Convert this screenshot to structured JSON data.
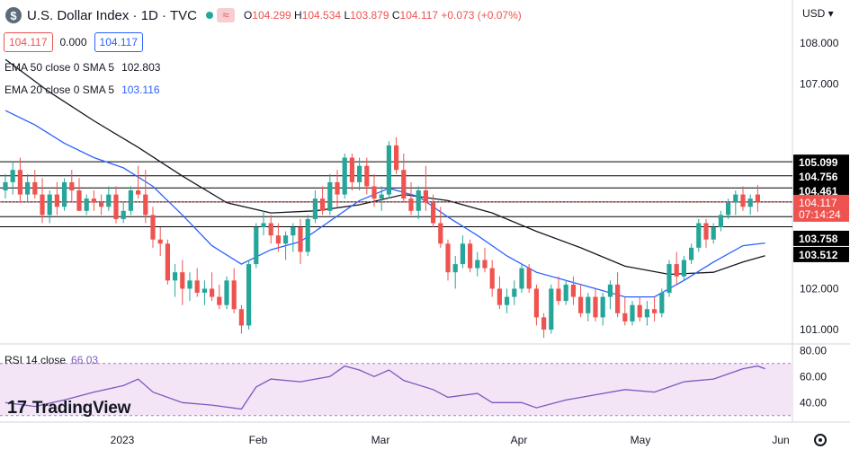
{
  "header": {
    "logo_letter": "$",
    "title": "U.S. Dollar Index · 1D · TVC",
    "wave_icon": "≈",
    "ohlc": {
      "o_label": "O",
      "o": "104.299",
      "h_label": "H",
      "h": "104.534",
      "l_label": "L",
      "l": "103.879",
      "c_label": "C",
      "c": "104.117",
      "chg": "+0.073 (+0.07%)"
    },
    "boxes": [
      "104.117",
      "0.000",
      "104.117"
    ],
    "currency": "USD"
  },
  "indicators": {
    "ema50": {
      "label": "EMA 50 close 0 SMA 5",
      "value": "102.803"
    },
    "ema20": {
      "label": "EMA 20 close 0 SMA 5",
      "value": "103.116"
    },
    "rsi": {
      "label": "RSI 14 close",
      "value": "66.03"
    }
  },
  "branding": {
    "name": "TradingView"
  },
  "colors": {
    "up": "#26a69a",
    "down": "#ef5350",
    "ema20": "#2962ff",
    "ema50": "#131722",
    "rsi": "#7e57c2",
    "rsi_fill": "#f3e5f5"
  },
  "chart_data": {
    "type": "candlestick",
    "ylim": [
      100.65,
      109.05
    ],
    "y_ticks": [
      101.0,
      102.0,
      107.0,
      108.0
    ],
    "x_labels": [
      "2023",
      "Feb",
      "Mar",
      "Apr",
      "May",
      "Jun"
    ],
    "horizontal_levels": [
      105.099,
      104.756,
      104.461,
      104.118,
      103.758,
      103.512
    ],
    "last_price": {
      "value": "104.117",
      "countdown": "07:14:24"
    },
    "candles": [
      [
        104.4,
        104.8,
        104.2,
        104.6
      ],
      [
        104.6,
        105.1,
        104.3,
        104.9
      ],
      [
        104.9,
        105.2,
        104.1,
        104.3
      ],
      [
        104.3,
        104.8,
        104.1,
        104.6
      ],
      [
        104.6,
        104.9,
        104.2,
        104.3
      ],
      [
        104.3,
        104.7,
        103.6,
        103.8
      ],
      [
        103.8,
        104.4,
        103.6,
        104.3
      ],
      [
        104.3,
        104.6,
        103.8,
        104.0
      ],
      [
        104.0,
        104.7,
        103.9,
        104.6
      ],
      [
        104.6,
        104.9,
        104.1,
        104.4
      ],
      [
        104.4,
        104.7,
        103.9,
        103.9
      ],
      [
        103.9,
        104.3,
        103.8,
        104.2
      ],
      [
        104.2,
        104.4,
        103.9,
        104.1
      ],
      [
        104.1,
        104.3,
        103.8,
        104.0
      ],
      [
        104.0,
        104.5,
        103.9,
        104.3
      ],
      [
        104.3,
        104.5,
        103.6,
        103.7
      ],
      [
        103.7,
        104.1,
        103.6,
        103.9
      ],
      [
        103.9,
        104.5,
        103.8,
        104.4
      ],
      [
        104.4,
        105.0,
        104.2,
        104.3
      ],
      [
        104.3,
        104.9,
        103.6,
        103.8
      ],
      [
        103.8,
        104.0,
        103.0,
        103.2
      ],
      [
        103.2,
        103.5,
        102.8,
        103.1
      ],
      [
        103.1,
        103.2,
        102.1,
        102.2
      ],
      [
        102.2,
        102.6,
        101.8,
        102.4
      ],
      [
        102.4,
        102.7,
        101.6,
        102.0
      ],
      [
        102.0,
        102.4,
        101.7,
        102.2
      ],
      [
        102.2,
        102.5,
        101.8,
        101.9
      ],
      [
        101.9,
        102.2,
        101.6,
        102.0
      ],
      [
        102.0,
        102.4,
        101.7,
        101.8
      ],
      [
        101.8,
        102.1,
        101.5,
        101.6
      ],
      [
        101.6,
        102.3,
        101.5,
        102.2
      ],
      [
        102.2,
        102.5,
        101.4,
        101.5
      ],
      [
        101.5,
        101.6,
        100.9,
        101.1
      ],
      [
        101.1,
        102.7,
        101.0,
        102.6
      ],
      [
        102.6,
        103.6,
        102.5,
        103.5
      ],
      [
        103.5,
        103.9,
        103.3,
        103.6
      ],
      [
        103.6,
        103.8,
        103.1,
        103.3
      ],
      [
        103.3,
        103.6,
        102.9,
        103.1
      ],
      [
        103.1,
        103.4,
        102.7,
        103.3
      ],
      [
        103.3,
        103.6,
        102.9,
        103.5
      ],
      [
        103.5,
        103.7,
        102.6,
        102.9
      ],
      [
        102.9,
        103.8,
        102.8,
        103.7
      ],
      [
        103.7,
        104.4,
        103.6,
        104.2
      ],
      [
        104.2,
        104.5,
        103.8,
        103.9
      ],
      [
        103.9,
        104.8,
        103.8,
        104.6
      ],
      [
        104.6,
        104.9,
        104.0,
        104.3
      ],
      [
        104.3,
        105.3,
        104.2,
        105.2
      ],
      [
        105.2,
        105.3,
        104.4,
        104.6
      ],
      [
        104.6,
        105.2,
        104.4,
        105.0
      ],
      [
        105.0,
        105.2,
        104.3,
        104.5
      ],
      [
        104.5,
        104.8,
        104.0,
        104.2
      ],
      [
        104.2,
        104.5,
        103.9,
        104.3
      ],
      [
        104.3,
        105.6,
        104.2,
        105.5
      ],
      [
        105.5,
        105.7,
        104.8,
        104.9
      ],
      [
        104.9,
        105.3,
        104.1,
        104.2
      ],
      [
        104.2,
        104.6,
        103.8,
        103.9
      ],
      [
        103.9,
        104.5,
        103.7,
        104.4
      ],
      [
        104.4,
        105.0,
        103.9,
        104.1
      ],
      [
        104.1,
        104.3,
        103.5,
        103.6
      ],
      [
        103.6,
        104.0,
        103.0,
        103.1
      ],
      [
        103.1,
        103.2,
        102.2,
        102.4
      ],
      [
        102.4,
        102.8,
        102.0,
        102.6
      ],
      [
        102.6,
        103.3,
        102.5,
        103.1
      ],
      [
        103.1,
        103.2,
        102.4,
        102.5
      ],
      [
        102.5,
        102.9,
        102.3,
        102.7
      ],
      [
        102.7,
        103.0,
        102.4,
        102.5
      ],
      [
        102.5,
        102.7,
        101.8,
        102.0
      ],
      [
        102.0,
        102.3,
        101.5,
        101.6
      ],
      [
        101.6,
        102.0,
        101.4,
        101.8
      ],
      [
        101.8,
        102.2,
        101.6,
        102.0
      ],
      [
        102.0,
        102.6,
        101.9,
        102.5
      ],
      [
        102.5,
        102.6,
        101.9,
        102.0
      ],
      [
        102.0,
        102.1,
        101.1,
        101.3
      ],
      [
        101.3,
        101.4,
        100.8,
        101.0
      ],
      [
        101.0,
        102.1,
        100.9,
        102.0
      ],
      [
        102.0,
        102.3,
        101.6,
        101.7
      ],
      [
        101.7,
        102.2,
        101.6,
        102.1
      ],
      [
        102.1,
        102.3,
        101.6,
        101.8
      ],
      [
        101.8,
        102.1,
        101.3,
        101.4
      ],
      [
        101.4,
        101.9,
        101.2,
        101.8
      ],
      [
        101.8,
        102.0,
        101.2,
        101.3
      ],
      [
        101.3,
        101.9,
        101.1,
        101.8
      ],
      [
        101.8,
        102.2,
        101.5,
        102.1
      ],
      [
        102.1,
        102.4,
        101.3,
        101.4
      ],
      [
        101.4,
        101.8,
        101.1,
        101.2
      ],
      [
        101.2,
        101.7,
        101.1,
        101.6
      ],
      [
        101.6,
        101.8,
        101.2,
        101.3
      ],
      [
        101.3,
        101.7,
        101.1,
        101.5
      ],
      [
        101.5,
        101.8,
        101.2,
        101.4
      ],
      [
        101.4,
        102.0,
        101.3,
        101.9
      ],
      [
        101.9,
        102.7,
        101.8,
        102.6
      ],
      [
        102.6,
        102.9,
        102.1,
        102.3
      ],
      [
        102.3,
        102.8,
        102.2,
        102.7
      ],
      [
        102.7,
        103.1,
        102.6,
        103.0
      ],
      [
        103.0,
        103.7,
        102.9,
        103.6
      ],
      [
        103.6,
        103.7,
        103.0,
        103.2
      ],
      [
        103.2,
        103.6,
        103.1,
        103.5
      ],
      [
        103.5,
        103.9,
        103.4,
        103.8
      ],
      [
        103.8,
        104.2,
        103.7,
        104.1
      ],
      [
        104.1,
        104.4,
        103.8,
        104.3
      ],
      [
        104.3,
        104.5,
        103.9,
        104.0
      ],
      [
        104.0,
        104.3,
        103.8,
        104.2
      ],
      [
        104.3,
        104.534,
        103.879,
        104.117
      ]
    ],
    "ema20": [
      [
        0,
        106.35
      ],
      [
        4,
        106.0
      ],
      [
        8,
        105.55
      ],
      [
        12,
        105.2
      ],
      [
        16,
        104.95
      ],
      [
        20,
        104.5
      ],
      [
        24,
        103.8
      ],
      [
        28,
        103.05
      ],
      [
        32,
        102.6
      ],
      [
        36,
        102.95
      ],
      [
        40,
        103.15
      ],
      [
        44,
        103.65
      ],
      [
        48,
        104.15
      ],
      [
        52,
        104.45
      ],
      [
        56,
        104.25
      ],
      [
        60,
        103.75
      ],
      [
        64,
        103.3
      ],
      [
        68,
        102.8
      ],
      [
        72,
        102.4
      ],
      [
        76,
        102.2
      ],
      [
        80,
        102.0
      ],
      [
        84,
        101.8
      ],
      [
        88,
        101.8
      ],
      [
        92,
        102.2
      ],
      [
        96,
        102.65
      ],
      [
        100,
        103.05
      ],
      [
        103,
        103.116
      ]
    ],
    "ema50": [
      [
        0,
        107.6
      ],
      [
        6,
        106.8
      ],
      [
        12,
        106.1
      ],
      [
        18,
        105.45
      ],
      [
        24,
        104.75
      ],
      [
        30,
        104.1
      ],
      [
        36,
        103.85
      ],
      [
        42,
        103.9
      ],
      [
        48,
        104.05
      ],
      [
        54,
        104.3
      ],
      [
        60,
        104.15
      ],
      [
        66,
        103.85
      ],
      [
        72,
        103.4
      ],
      [
        78,
        103.0
      ],
      [
        84,
        102.55
      ],
      [
        90,
        102.35
      ],
      [
        96,
        102.4
      ],
      [
        100,
        102.65
      ],
      [
        103,
        102.803
      ]
    ]
  },
  "rsi_data": {
    "ylim": [
      25,
      85
    ],
    "ticks": [
      80.0,
      60.0,
      40.0
    ],
    "band": [
      70,
      30
    ],
    "values": [
      [
        0,
        40
      ],
      [
        4,
        37
      ],
      [
        8,
        42
      ],
      [
        12,
        48
      ],
      [
        16,
        53
      ],
      [
        18,
        58
      ],
      [
        20,
        48
      ],
      [
        24,
        40
      ],
      [
        28,
        38
      ],
      [
        32,
        35
      ],
      [
        34,
        52
      ],
      [
        36,
        58
      ],
      [
        40,
        56
      ],
      [
        44,
        60
      ],
      [
        46,
        68
      ],
      [
        48,
        65
      ],
      [
        50,
        60
      ],
      [
        52,
        65
      ],
      [
        54,
        57
      ],
      [
        58,
        50
      ],
      [
        60,
        44
      ],
      [
        64,
        47
      ],
      [
        66,
        40
      ],
      [
        70,
        40
      ],
      [
        72,
        36
      ],
      [
        76,
        42
      ],
      [
        80,
        46
      ],
      [
        84,
        50
      ],
      [
        88,
        48
      ],
      [
        92,
        56
      ],
      [
        96,
        58
      ],
      [
        100,
        66
      ],
      [
        102,
        68
      ],
      [
        103,
        66
      ]
    ]
  }
}
